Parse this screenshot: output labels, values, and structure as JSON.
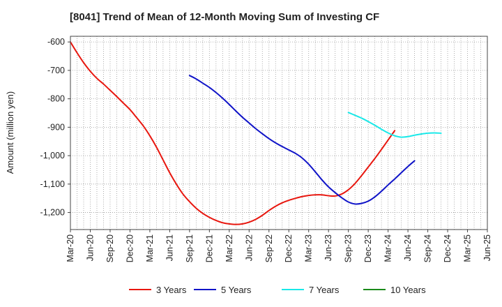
{
  "chart_data": {
    "type": "line",
    "title": "[8041]  Trend of Mean of 12-Month Moving Sum of Investing CF",
    "xlabel": "",
    "ylabel": "Amount (million yen)",
    "ylim": [
      -1260,
      -580
    ],
    "yticks": [
      -600,
      -700,
      -800,
      -900,
      -1000,
      -1100,
      -1200
    ],
    "ytick_labels": [
      "-600",
      "-700",
      "-800",
      "-900",
      "-1,000",
      "-1,100",
      "-1,200"
    ],
    "xtick_labels": [
      "Mar-20",
      "Jun-20",
      "Sep-20",
      "Dec-20",
      "Mar-21",
      "Jun-21",
      "Sep-21",
      "Dec-21",
      "Mar-22",
      "Jun-22",
      "Sep-22",
      "Dec-22",
      "Mar-23",
      "Jun-23",
      "Sep-23",
      "Dec-23",
      "Mar-24",
      "Jun-24",
      "Sep-24",
      "Dec-24",
      "Mar-25",
      "Jun-25"
    ],
    "grid": true,
    "legend_position": "bottom",
    "series": [
      {
        "name": "3 Years",
        "color": "#e8170f",
        "start_index": 0,
        "values": [
          -600,
          -638,
          -673,
          -703,
          -728,
          -748,
          -770,
          -792,
          -815,
          -838,
          -866,
          -895,
          -930,
          -970,
          -1015,
          -1060,
          -1100,
          -1135,
          -1162,
          -1185,
          -1203,
          -1217,
          -1228,
          -1236,
          -1240,
          -1242,
          -1240,
          -1234,
          -1224,
          -1210,
          -1193,
          -1178,
          -1166,
          -1157,
          -1150,
          -1144,
          -1140,
          -1138,
          -1138,
          -1141,
          -1142,
          -1135,
          -1120,
          -1098,
          -1070,
          -1040,
          -1010,
          -978,
          -945,
          -912
        ]
      },
      {
        "name": "5 Years",
        "color": "#1014c8",
        "start_index": 18,
        "values": [
          -718,
          -730,
          -745,
          -760,
          -778,
          -798,
          -820,
          -843,
          -865,
          -885,
          -905,
          -923,
          -940,
          -955,
          -968,
          -980,
          -992,
          -1008,
          -1030,
          -1057,
          -1085,
          -1110,
          -1130,
          -1148,
          -1163,
          -1170,
          -1168,
          -1160,
          -1145,
          -1125,
          -1103,
          -1082,
          -1060,
          -1038,
          -1018
        ]
      },
      {
        "name": "7 Years",
        "color": "#19e8e8",
        "start_index": 42,
        "values": [
          -848,
          -858,
          -868,
          -880,
          -893,
          -907,
          -920,
          -930,
          -935,
          -933,
          -928,
          -924,
          -921,
          -920,
          -921
        ]
      },
      {
        "name": "10 Years",
        "color": "#1a8a1a",
        "start_index": 0,
        "values": []
      }
    ]
  }
}
